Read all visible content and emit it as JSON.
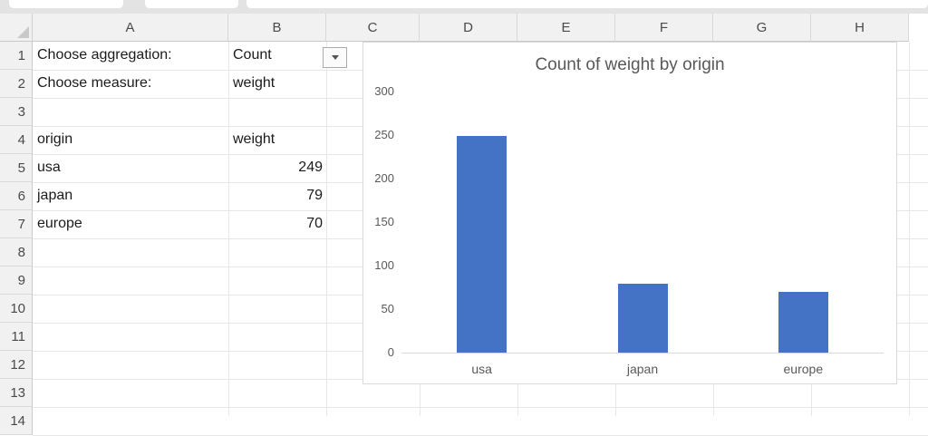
{
  "chrome": {
    "tabs": [
      "",
      "",
      ""
    ]
  },
  "sheet": {
    "column_headers": [
      "A",
      "B",
      "C",
      "D",
      "E",
      "F",
      "G",
      "H"
    ],
    "row_headers": [
      "1",
      "2",
      "3",
      "4",
      "5",
      "6",
      "7",
      "8",
      "9",
      "10",
      "11",
      "12",
      "13",
      "14"
    ],
    "cells": [
      {
        "ref": "A1",
        "text": "Choose aggregation:",
        "align": "left"
      },
      {
        "ref": "B1",
        "text": "Count",
        "align": "left"
      },
      {
        "ref": "A2",
        "text": "Choose measure:",
        "align": "left"
      },
      {
        "ref": "B2",
        "text": "weight",
        "align": "left"
      },
      {
        "ref": "A4",
        "text": "origin",
        "align": "left"
      },
      {
        "ref": "B4",
        "text": "weight",
        "align": "left"
      },
      {
        "ref": "A5",
        "text": "usa",
        "align": "left"
      },
      {
        "ref": "B5",
        "text": "249",
        "align": "right"
      },
      {
        "ref": "A6",
        "text": "japan",
        "align": "left"
      },
      {
        "ref": "B6",
        "text": "79",
        "align": "right"
      },
      {
        "ref": "A7",
        "text": "europe",
        "align": "left"
      },
      {
        "ref": "B7",
        "text": "70",
        "align": "right"
      }
    ],
    "dropdown_cell": "B1"
  },
  "chart_data": {
    "type": "bar",
    "title": "Count of weight by origin",
    "categories": [
      "usa",
      "japan",
      "europe"
    ],
    "values": [
      249,
      79,
      70
    ],
    "yticks": [
      0,
      50,
      100,
      150,
      200,
      250,
      300
    ],
    "ylim": [
      0,
      300
    ],
    "xlabel": "",
    "ylabel": "",
    "grid": false,
    "legend": false,
    "bar_color": "#4472C4",
    "title_color": "#595959",
    "label_color": "#595959",
    "axis_color": "#D9D9D9"
  }
}
